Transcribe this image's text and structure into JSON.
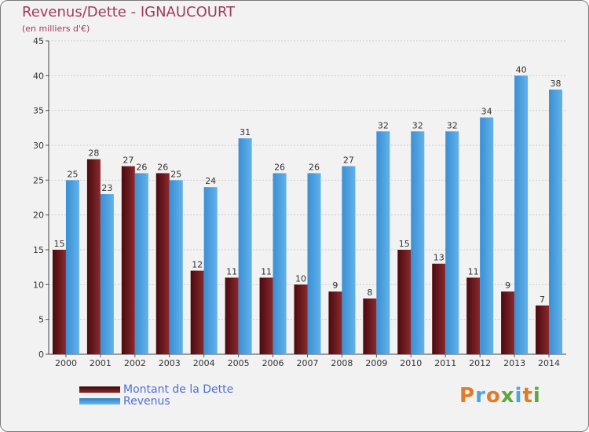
{
  "chart_data": {
    "type": "bar",
    "title": "Revenus/Dette - IGNAUCOURT",
    "subtitle": "(en milliers d'€)",
    "categories": [
      "2000",
      "2001",
      "2002",
      "2003",
      "2004",
      "2005",
      "2006",
      "2007",
      "2008",
      "2009",
      "2010",
      "2011",
      "2012",
      "2013",
      "2014"
    ],
    "series": [
      {
        "name": "Montant de la Dette",
        "values": [
          15,
          28,
          27,
          26,
          12,
          11,
          11,
          10,
          9,
          8,
          15,
          13,
          11,
          9,
          7
        ],
        "color": "#7a1a1f"
      },
      {
        "name": "Revenus",
        "values": [
          25,
          23,
          26,
          25,
          24,
          31,
          26,
          26,
          27,
          32,
          32,
          32,
          34,
          40,
          38
        ],
        "color": "#4fa3e0"
      }
    ],
    "ylim": [
      0,
      45
    ],
    "yticks": [
      0,
      5,
      10,
      15,
      20,
      25,
      30,
      35,
      40,
      45
    ],
    "grid": true,
    "legend": "bottom-left"
  },
  "brand": {
    "text": "Proxiti",
    "colors": [
      "#e07b2a",
      "#4fa3e0",
      "#e07b2a",
      "#5aa83b",
      "#4fa3e0",
      "#e07b2a",
      "#5aa83b"
    ]
  }
}
